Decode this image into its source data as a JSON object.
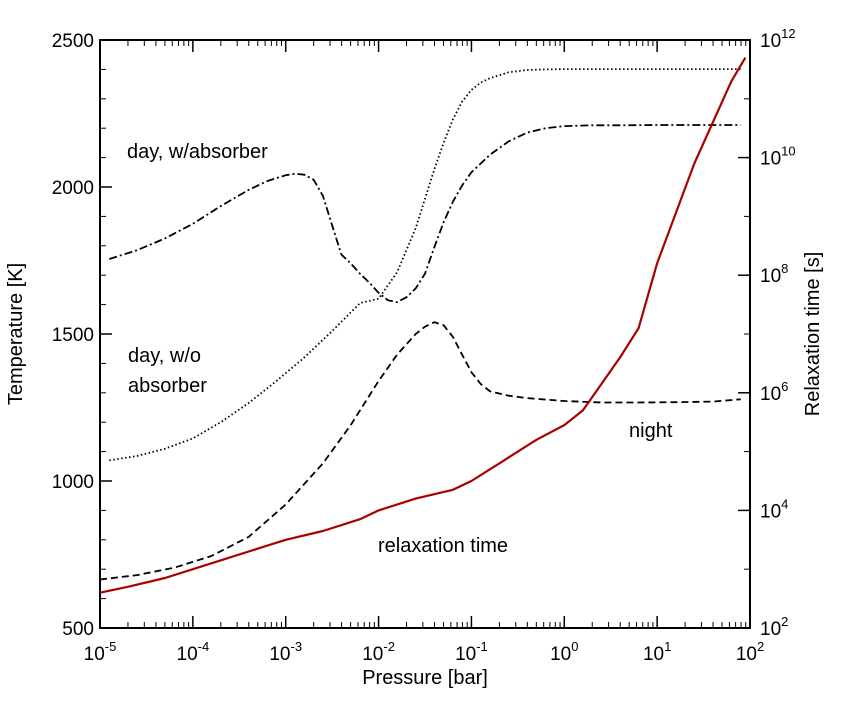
{
  "chart_data": {
    "type": "line",
    "xlabel": "Pressure [bar]",
    "ylabel": "Temperature [K]",
    "y2label": "Relaxation time [s]",
    "xscale": "log",
    "xlim_exponent": [
      -5,
      2
    ],
    "ylim": [
      500,
      2500
    ],
    "y2scale": "log",
    "y2lim_exponent": [
      2,
      12
    ],
    "x_tick_labels": [
      {
        "exp": -5,
        "base": "10",
        "sup": "-5"
      },
      {
        "exp": -4,
        "base": "10",
        "sup": "-4"
      },
      {
        "exp": -3,
        "base": "10",
        "sup": "-3"
      },
      {
        "exp": -2,
        "base": "10",
        "sup": "-2"
      },
      {
        "exp": -1,
        "base": "10",
        "sup": "-1"
      },
      {
        "exp": 0,
        "base": "10",
        "sup": "0"
      },
      {
        "exp": 1,
        "base": "10",
        "sup": "1"
      },
      {
        "exp": 2,
        "base": "10",
        "sup": "2"
      }
    ],
    "y_ticks": [
      500,
      1000,
      1500,
      2000,
      2500
    ],
    "y_tick_labels": [
      "500",
      "1000",
      "1500",
      "2000",
      "2500"
    ],
    "y2_tick_labels": [
      {
        "exp": 2,
        "base": "10",
        "sup": "2"
      },
      {
        "exp": 4,
        "base": "10",
        "sup": "4"
      },
      {
        "exp": 6,
        "base": "10",
        "sup": "6"
      },
      {
        "exp": 8,
        "base": "10",
        "sup": "8"
      },
      {
        "exp": 10,
        "base": "10",
        "sup": "10"
      },
      {
        "exp": 12,
        "base": "10",
        "sup": "12"
      }
    ],
    "series": [
      {
        "name": "day, w/absorber",
        "axis": "left",
        "style": "dashdot",
        "color": "#000000",
        "log10_p": [
          -4.9,
          -4.6,
          -4.3,
          -4.0,
          -3.7,
          -3.4,
          -3.2,
          -3.0,
          -2.9,
          -2.8,
          -2.7,
          -2.6,
          -2.5,
          -2.4,
          -2.3,
          -2.2,
          -2.1,
          -2.0,
          -1.9,
          -1.8,
          -1.7,
          -1.6,
          -1.5,
          -1.4,
          -1.3,
          -1.2,
          -1.1,
          -1.0,
          -0.8,
          -0.6,
          -0.4,
          -0.2,
          0.0,
          0.3,
          0.6,
          1.0,
          1.5,
          1.9
        ],
        "values": [
          1755,
          1785,
          1825,
          1875,
          1935,
          1990,
          2020,
          2040,
          2045,
          2042,
          2025,
          1970,
          1870,
          1770,
          1740,
          1705,
          1675,
          1640,
          1615,
          1608,
          1625,
          1655,
          1705,
          1795,
          1880,
          1950,
          2005,
          2050,
          2110,
          2155,
          2185,
          2200,
          2207,
          2210,
          2210,
          2211,
          2211,
          2211
        ]
      },
      {
        "name": "day, w/o absorber",
        "axis": "left",
        "style": "dotted",
        "color": "#000000",
        "log10_p": [
          -4.9,
          -4.6,
          -4.3,
          -4.0,
          -3.7,
          -3.4,
          -3.1,
          -2.8,
          -2.5,
          -2.2,
          -2.0,
          -1.8,
          -1.6,
          -1.5,
          -1.4,
          -1.3,
          -1.2,
          -1.1,
          -1.0,
          -0.9,
          -0.8,
          -0.6,
          -0.4,
          -0.2,
          0.0,
          0.5,
          1.0,
          1.5,
          1.9
        ],
        "values": [
          1070,
          1085,
          1110,
          1145,
          1200,
          1265,
          1340,
          1420,
          1510,
          1605,
          1620,
          1710,
          1860,
          1960,
          2060,
          2150,
          2230,
          2290,
          2330,
          2355,
          2370,
          2390,
          2398,
          2400,
          2401,
          2401,
          2401,
          2401,
          2401
        ]
      },
      {
        "name": "night",
        "axis": "left",
        "style": "dashed",
        "color": "#000000",
        "log10_p": [
          -5.0,
          -4.6,
          -4.2,
          -3.8,
          -3.4,
          -3.0,
          -2.6,
          -2.3,
          -2.0,
          -1.8,
          -1.6,
          -1.5,
          -1.4,
          -1.3,
          -1.2,
          -1.1,
          -1.0,
          -0.9,
          -0.8,
          -0.6,
          -0.4,
          -0.2,
          0.0,
          0.4,
          0.8,
          1.2,
          1.6,
          1.9
        ],
        "values": [
          665,
          680,
          705,
          745,
          810,
          920,
          1060,
          1190,
          1340,
          1430,
          1500,
          1525,
          1540,
          1530,
          1490,
          1430,
          1370,
          1330,
          1305,
          1290,
          1282,
          1277,
          1272,
          1267,
          1267,
          1268,
          1270,
          1278
        ]
      },
      {
        "name": "relaxation time",
        "axis": "right",
        "style": "solid",
        "color": "#aa0000",
        "log10_p": [
          -5.0,
          -4.7,
          -4.3,
          -3.8,
          -3.3,
          -3.0,
          -2.6,
          -2.2,
          -2.0,
          -1.6,
          -1.2,
          -1.0,
          -0.7,
          -0.3,
          0.0,
          0.2,
          0.6,
          0.8,
          1.0,
          1.4,
          1.8,
          1.95
        ],
        "log10_values": [
          2.6,
          2.7,
          2.85,
          3.1,
          3.35,
          3.5,
          3.65,
          3.85,
          4.0,
          4.2,
          4.35,
          4.5,
          4.8,
          5.2,
          5.45,
          5.7,
          6.6,
          7.1,
          8.2,
          9.9,
          11.3,
          11.7
        ]
      }
    ],
    "annotations": [
      {
        "text": "day, w/absorber",
        "color": "#000000"
      },
      {
        "text": "day, w/o",
        "color": "#000000"
      },
      {
        "text": "absorber",
        "color": "#000000"
      },
      {
        "text": "night",
        "color": "#000000"
      },
      {
        "text": "relaxation time",
        "color": "#aa0000"
      }
    ]
  }
}
